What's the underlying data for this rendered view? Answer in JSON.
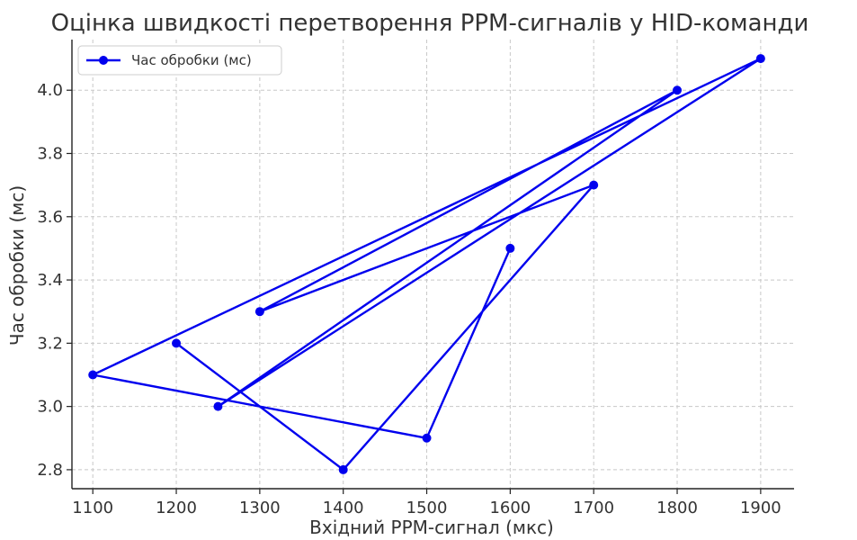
{
  "chart_data": {
    "type": "line",
    "title": "Оцінка швидкості перетворення PPM-сигналів у HID-команди",
    "xlabel": "Вхідний PPM-сигнал (мкс)",
    "ylabel": "Час обробки (мс)",
    "xlim": [
      1075,
      1940
    ],
    "ylim": [
      2.74,
      4.16
    ],
    "xticks": [
      "1100",
      "1200",
      "1300",
      "1400",
      "1500",
      "1600",
      "1700",
      "1800",
      "1900"
    ],
    "yticks": [
      "2.8",
      "3.0",
      "3.2",
      "3.4",
      "3.6",
      "3.8",
      "4.0"
    ],
    "grid": true,
    "legend_position": "top-left",
    "series": [
      {
        "name": "Час обробки (мс)",
        "color": "#0000ee",
        "marker": "circle",
        "x": [
          1200,
          1400,
          1700,
          1300,
          1800,
          1250,
          1900,
          1100,
          1500,
          1600
        ],
        "y": [
          3.2,
          2.8,
          3.7,
          3.3,
          4.0,
          3.0,
          4.1,
          3.1,
          2.9,
          3.5
        ]
      }
    ]
  }
}
